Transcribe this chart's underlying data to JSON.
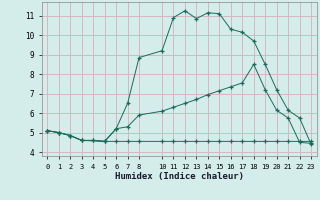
{
  "xlabel": "Humidex (Indice chaleur)",
  "background_color": "#d4ecea",
  "grid_color": "#d4b8c0",
  "line_color": "#1a6b5a",
  "xlim": [
    -0.5,
    23.5
  ],
  "ylim": [
    3.8,
    11.7
  ],
  "yticks": [
    4,
    5,
    6,
    7,
    8,
    9,
    10,
    11
  ],
  "xticks": [
    0,
    1,
    2,
    3,
    4,
    5,
    6,
    7,
    8,
    10,
    11,
    12,
    13,
    14,
    15,
    16,
    17,
    18,
    19,
    20,
    21,
    22,
    23
  ],
  "line1_x": [
    0,
    1,
    2,
    3,
    4,
    5,
    6,
    7,
    8,
    10,
    11,
    12,
    13,
    14,
    15,
    16,
    17,
    18,
    19,
    20,
    21,
    22,
    23
  ],
  "line1_y": [
    5.1,
    5.0,
    4.85,
    4.6,
    4.6,
    4.55,
    4.55,
    4.55,
    4.55,
    4.55,
    4.55,
    4.55,
    4.55,
    4.55,
    4.55,
    4.55,
    4.55,
    4.55,
    4.55,
    4.55,
    4.55,
    4.55,
    4.55
  ],
  "line2_x": [
    0,
    1,
    2,
    3,
    4,
    5,
    6,
    7,
    8,
    10,
    11,
    12,
    13,
    14,
    15,
    16,
    17,
    18,
    19,
    20,
    21,
    22,
    23
  ],
  "line2_y": [
    5.1,
    5.0,
    4.85,
    4.6,
    4.6,
    4.55,
    5.2,
    5.3,
    5.9,
    6.1,
    6.3,
    6.5,
    6.7,
    6.95,
    7.15,
    7.35,
    7.55,
    8.5,
    7.2,
    6.15,
    5.75,
    4.5,
    4.45
  ],
  "line3_x": [
    0,
    1,
    2,
    3,
    5,
    6,
    7,
    8,
    10,
    11,
    12,
    13,
    14,
    15,
    16,
    17,
    18,
    19,
    20,
    21,
    22,
    23
  ],
  "line3_y": [
    5.1,
    5.0,
    4.85,
    4.6,
    4.55,
    5.2,
    6.5,
    8.85,
    9.2,
    10.9,
    11.25,
    10.85,
    11.15,
    11.1,
    10.3,
    10.15,
    9.7,
    8.5,
    7.2,
    6.15,
    5.75,
    4.4
  ]
}
